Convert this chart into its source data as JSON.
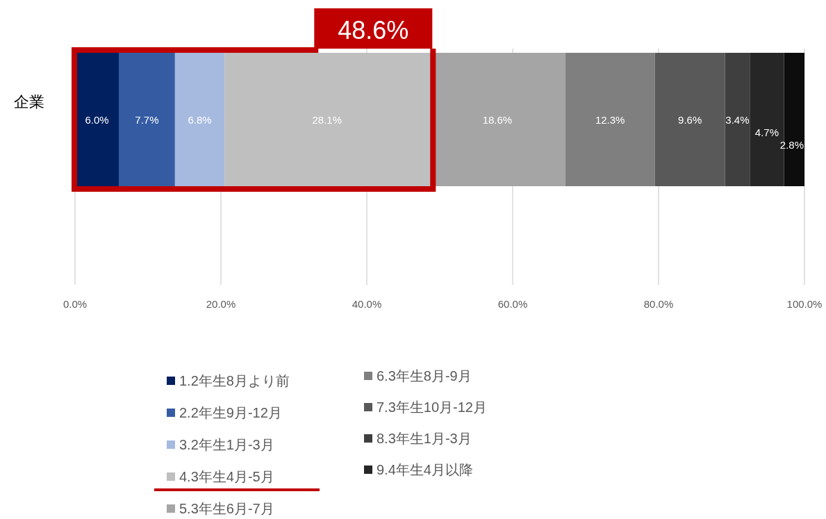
{
  "chart_data": {
    "type": "bar",
    "orientation": "horizontal",
    "stacked": true,
    "categories": [
      "企業"
    ],
    "series": [
      {
        "name": "1.2年生8月より前",
        "color": "#002060",
        "values": [
          6.0
        ],
        "value_labels": [
          "6.0%"
        ]
      },
      {
        "name": "2.2年生9月-12月",
        "color": "#355ca3",
        "values": [
          7.7
        ],
        "value_labels": [
          "7.7%"
        ]
      },
      {
        "name": "3.2年生1月-3月",
        "color": "#a6badf",
        "values": [
          6.8
        ],
        "value_labels": [
          "6.8%"
        ]
      },
      {
        "name": "4.3年生4月-5月",
        "color": "#bfbfbf",
        "values": [
          28.1
        ],
        "value_labels": [
          "28.1%"
        ]
      },
      {
        "name": "5.3年生6月-7月",
        "color": "#a5a5a5",
        "values": [
          18.6
        ],
        "value_labels": [
          "18.6%"
        ]
      },
      {
        "name": "6.3年生8月-9月",
        "color": "#7f7f7f",
        "values": [
          12.3
        ],
        "value_labels": [
          "12.3%"
        ]
      },
      {
        "name": "7.3年生10月-12月",
        "color": "#595959",
        "values": [
          9.6
        ],
        "value_labels": [
          "9.6%"
        ]
      },
      {
        "name": "8.3年生1月-3月",
        "color": "#3f3f3f",
        "values": [
          3.4
        ],
        "value_labels": [
          "3.4%"
        ]
      },
      {
        "name": "9.4年生4月以降",
        "color": "#262626",
        "values": [
          4.7
        ],
        "value_labels": [
          "4.7%"
        ]
      },
      {
        "color": "#0d0d0d",
        "values": [
          2.8
        ],
        "value_labels": [
          "2.8%"
        ]
      }
    ],
    "xlim": [
      0,
      100
    ],
    "xticks": [
      {
        "value": 0,
        "label": "0.0%"
      },
      {
        "value": 20,
        "label": "20.0%"
      },
      {
        "value": 40,
        "label": "40.0%"
      },
      {
        "value": 60,
        "label": "60.0%"
      },
      {
        "value": 80,
        "label": "80.0%"
      },
      {
        "value": 100,
        "label": "100.0%"
      }
    ],
    "grid": "x",
    "legend": "bottom",
    "annotations": [
      "48.6%"
    ]
  }
}
